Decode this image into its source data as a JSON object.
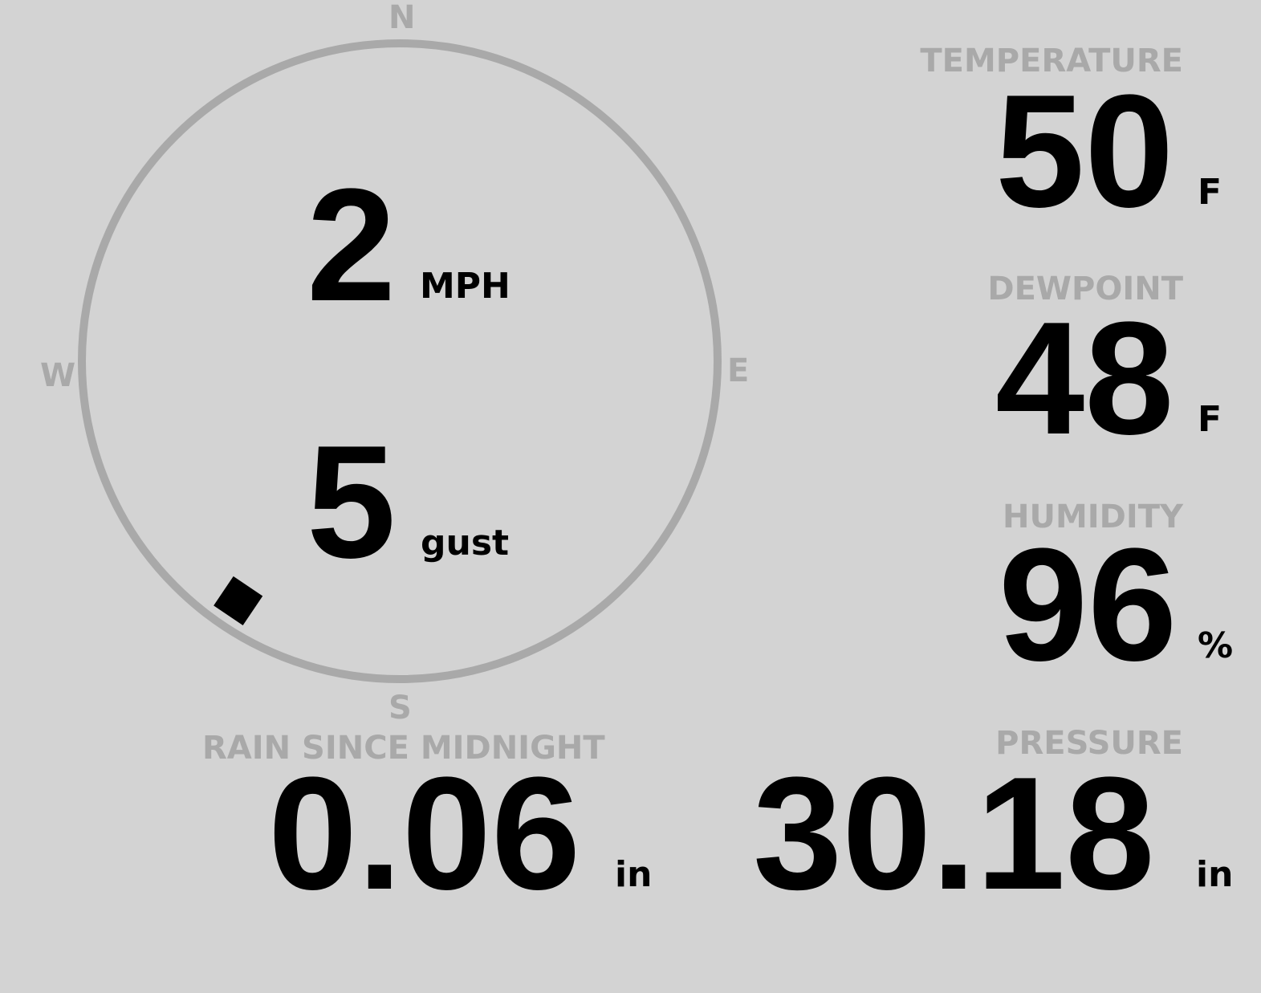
{
  "wind": {
    "speed": "2",
    "speed_unit": "MPH",
    "gust": "5",
    "gust_unit": "gust",
    "direction_deg": 214,
    "cardinals": {
      "n": "N",
      "e": "E",
      "s": "S",
      "w": "W"
    }
  },
  "temperature": {
    "label": "TEMPERATURE",
    "value": "50",
    "unit": "F"
  },
  "dewpoint": {
    "label": "DEWPOINT",
    "value": "48",
    "unit": "F"
  },
  "humidity": {
    "label": "HUMIDITY",
    "value": "96",
    "unit": "%"
  },
  "rain": {
    "label": "RAIN SINCE MIDNIGHT",
    "value": "0.06",
    "unit": "in"
  },
  "pressure": {
    "label": "PRESSURE",
    "value": "30.18",
    "unit": "in"
  },
  "colors": {
    "background": "#d3d3d3",
    "label": "#a9a9a9",
    "value": "#000000"
  }
}
